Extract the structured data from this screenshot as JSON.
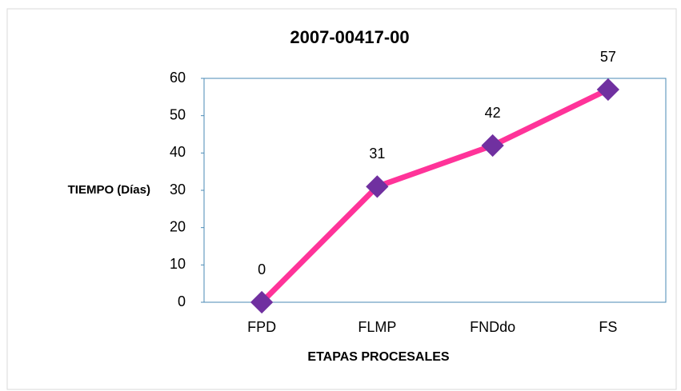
{
  "chart_data": {
    "type": "line",
    "title": "2007-00417-00",
    "x_label": "ETAPAS PROCESALES",
    "y_label": "TIEMPO (Días)",
    "categories": [
      "FPD",
      "FLMP",
      "FNDdo",
      "FS"
    ],
    "series": [
      {
        "name": "TIEMPO (Días)",
        "color": "#ff3399",
        "marker_color": "#7030a0",
        "values": [
          0,
          31,
          42,
          57
        ]
      }
    ],
    "ylim": [
      0,
      60
    ],
    "yticks": [
      0,
      10,
      20,
      30,
      40,
      50,
      60
    ],
    "grid": false
  }
}
